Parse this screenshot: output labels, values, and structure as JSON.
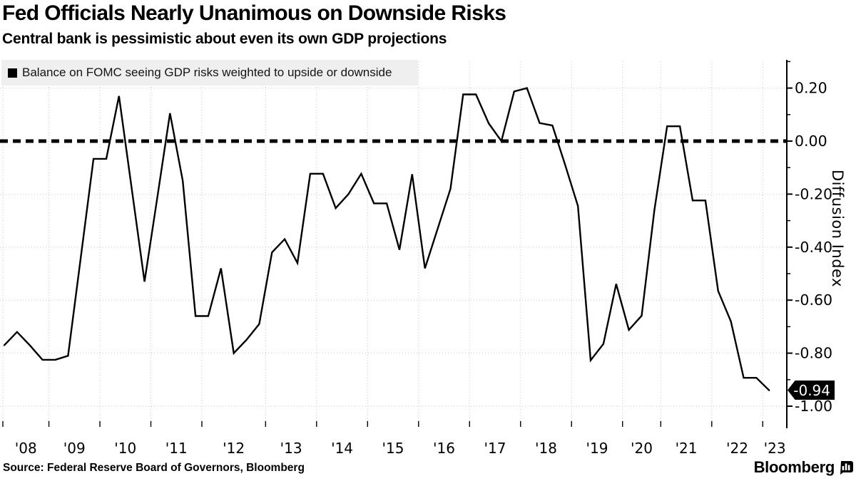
{
  "header": {
    "title": "Fed Officials Nearly Unanimous on Downside Risks",
    "subtitle": "Central bank is pessimistic about even its own GDP projections"
  },
  "legend": {
    "label": "Balance on FOMC seeing GDP risks weighted to upside or downside"
  },
  "footer": {
    "source": "Source: Federal Reserve Board of Governors, Bloomberg",
    "brand": "Bloomberg"
  },
  "chart_data": {
    "type": "line",
    "title": "Fed Officials Nearly Unanimous on Downside Risks",
    "subtitle": "Central bank is pessimistic about even its own GDP projections",
    "ylabel": "Diffusion Index",
    "xlabel": "",
    "legend_position": "top-left",
    "grid": "dotted",
    "ylim": [
      -1.07,
      0.3
    ],
    "zero_line": {
      "value": 0.0,
      "style": "dashed",
      "color": "#000000"
    },
    "y_major_ticks": [
      {
        "v": 0.2,
        "label": "0.20"
      },
      {
        "v": 0.0,
        "label": "0.00"
      },
      {
        "v": -0.2,
        "label": "-0.20"
      },
      {
        "v": -0.4,
        "label": "-0.40"
      },
      {
        "v": -0.6,
        "label": "-0.60"
      },
      {
        "v": -0.8,
        "label": "-0.80"
      },
      {
        "v": -1.0,
        "label": "-1.00"
      }
    ],
    "y_minor_ticks": [
      0.3,
      0.1,
      -0.1,
      -0.3,
      -0.5,
      -0.7,
      -0.9
    ],
    "x_ticks": [
      {
        "label": "'08",
        "points": 4
      },
      {
        "label": "'09",
        "points": 4
      },
      {
        "label": "'10",
        "points": 4
      },
      {
        "label": "'11",
        "points": 4
      },
      {
        "label": "'12",
        "points": 5
      },
      {
        "label": "'13",
        "points": 4
      },
      {
        "label": "'14",
        "points": 4
      },
      {
        "label": "'15",
        "points": 4
      },
      {
        "label": "'16",
        "points": 4
      },
      {
        "label": "'17",
        "points": 4
      },
      {
        "label": "'18",
        "points": 4
      },
      {
        "label": "'19",
        "points": 4
      },
      {
        "label": "'20",
        "points": 3
      },
      {
        "label": "'21",
        "points": 4
      },
      {
        "label": "'22",
        "points": 4
      },
      {
        "label": "'23",
        "points": 1
      }
    ],
    "series": [
      {
        "name": "Balance on FOMC seeing GDP risks weighted to upside or downside",
        "color": "#000000",
        "values": [
          -0.77,
          -0.72,
          -0.77,
          -0.825,
          -0.825,
          -0.81,
          -0.44,
          -0.067,
          -0.067,
          0.17,
          -0.18,
          -0.53,
          -0.215,
          0.105,
          -0.15,
          -0.66,
          -0.66,
          -0.48,
          -0.8,
          -0.75,
          -0.69,
          -0.42,
          -0.37,
          -0.46,
          -0.123,
          -0.123,
          -0.253,
          -0.2,
          -0.123,
          -0.235,
          -0.235,
          -0.41,
          -0.125,
          -0.48,
          -0.33,
          -0.18,
          0.176,
          0.176,
          0.067,
          0.0,
          0.187,
          0.2,
          0.068,
          0.059,
          -0.09,
          -0.245,
          -0.827,
          -0.765,
          -0.539,
          -0.712,
          -0.659,
          -0.26,
          0.056,
          0.056,
          -0.224,
          -0.224,
          -0.565,
          -0.68,
          -0.893,
          -0.893,
          -0.94
        ]
      }
    ],
    "end_label": {
      "text": "-0.94",
      "value": -0.94
    },
    "colors": {
      "line": "#000000",
      "grid": "#c6c6c6",
      "zero_line": "#000000",
      "badge_bg": "#000000",
      "badge_text": "#ffffff",
      "legend_bg": "#efefef"
    }
  }
}
